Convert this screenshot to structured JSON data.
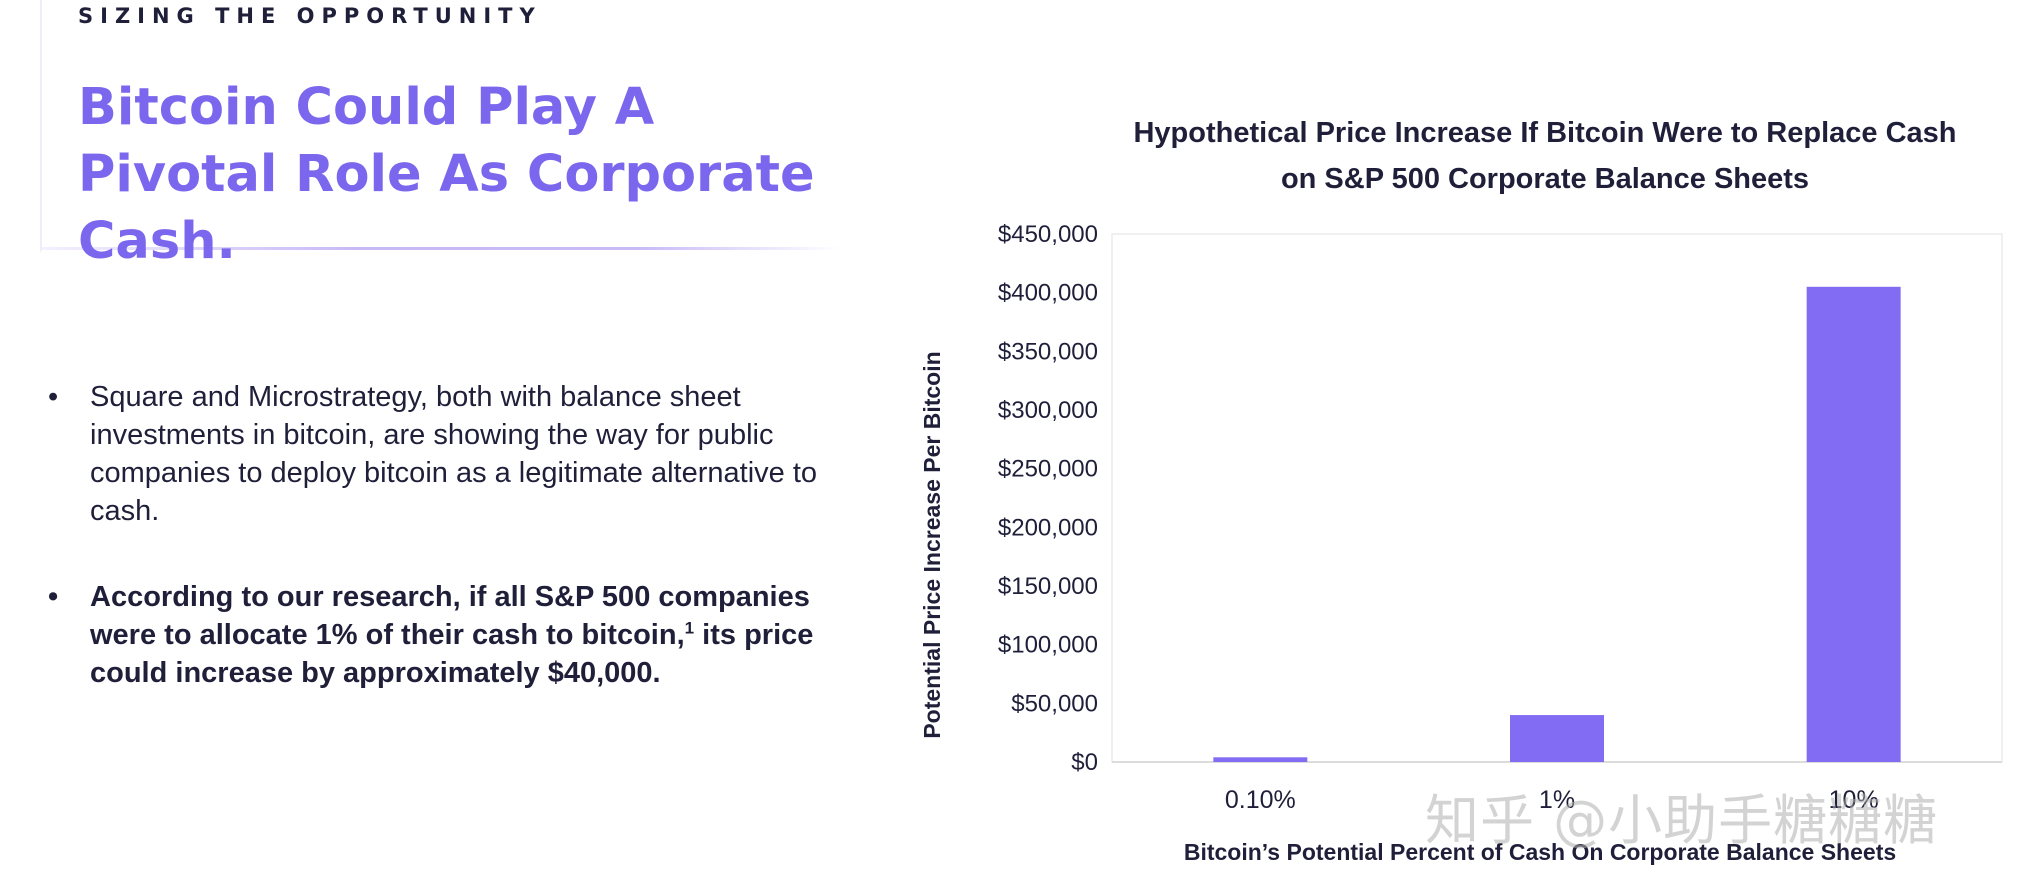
{
  "header": {
    "eyebrow": "SIZING THE OPPORTUNITY",
    "headline": "Bitcoin Could Play A Pivotal Role As Corporate Cash."
  },
  "bullets": [
    {
      "text": "Square and Microstrategy, both with balance sheet investments in bitcoin, are showing the way for public companies to deploy bitcoin as a legitimate alternative to cash."
    },
    {
      "text_before": "According to our research, if all S&P 500 companies were to allocate 1% of their cash to bitcoin,",
      "footnote": "1",
      "text_after": " its price could increase by approximately $40,000."
    }
  ],
  "bullet_glyph": "•",
  "watermark": "知乎 @小助手糖糖糖",
  "colors": {
    "accent": "#7b66ee",
    "bar": "#826cf4",
    "text": "#1f1f3a",
    "axis": "#dcdcdc"
  },
  "chart_data": {
    "type": "bar",
    "title": "Hypothetical Price Increase If Bitcoin Were to Replace Cash on S&P 500 Corporate Balance Sheets",
    "xlabel": "Bitcoin’s Potential Percent of Cash On Corporate Balance Sheets",
    "ylabel": "Potential Price Increase Per Bitcoin",
    "categories": [
      "0.10%",
      "1%",
      "10%"
    ],
    "values": [
      4000,
      40000,
      405000
    ],
    "ylim": [
      0,
      450000
    ],
    "y_ticks": [
      "$0",
      "$50,000",
      "$100,000",
      "$150,000",
      "$200,000",
      "$250,000",
      "$300,000",
      "$350,000",
      "$400,000",
      "$450,000"
    ],
    "grid": false,
    "legend": "none"
  }
}
